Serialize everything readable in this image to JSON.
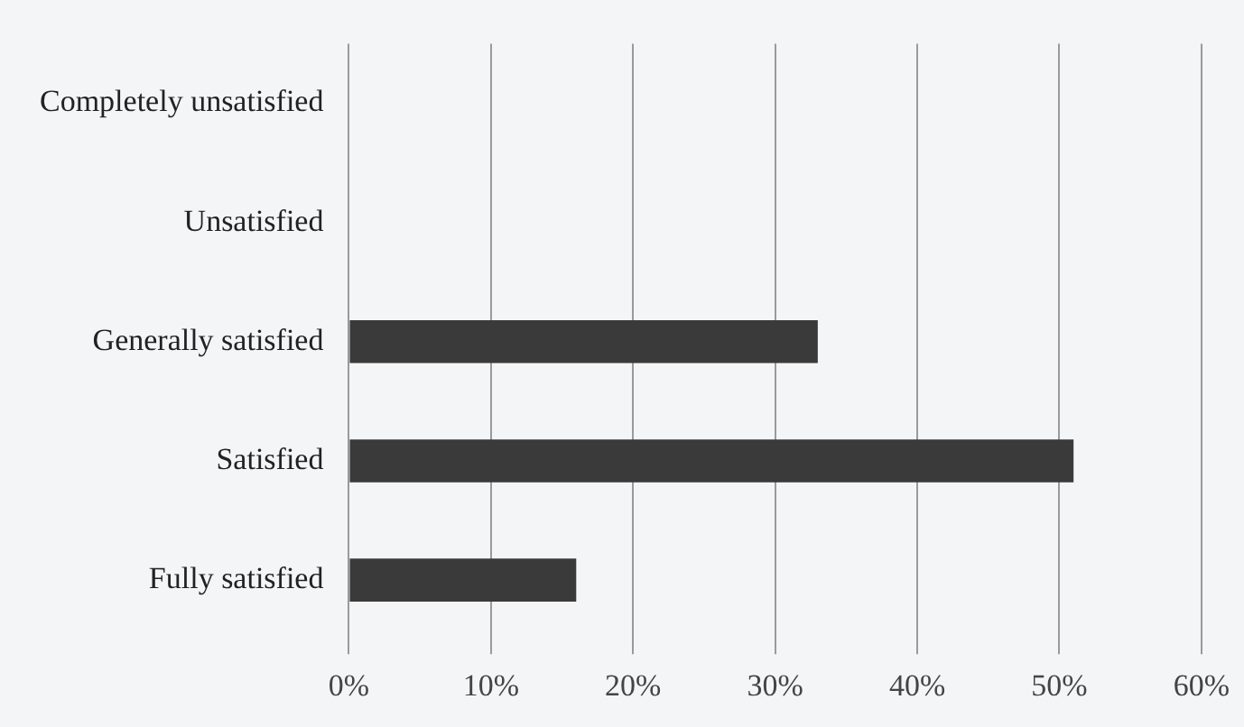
{
  "chart_data": {
    "type": "bar",
    "orientation": "horizontal",
    "categories": [
      "Completely unsatisfied",
      "Unsatisfied",
      "Generally satisfied",
      "Satisfied",
      "Fully satisfied"
    ],
    "values": [
      0,
      0,
      33,
      51,
      16
    ],
    "color": "#3a3a3a",
    "xlim": [
      0,
      60
    ],
    "xticks": [
      {
        "value": 0,
        "label": "0%"
      },
      {
        "value": 10,
        "label": "10%"
      },
      {
        "value": 20,
        "label": "20%"
      },
      {
        "value": 30,
        "label": "30%"
      },
      {
        "value": 40,
        "label": "40%"
      },
      {
        "value": 50,
        "label": "50%"
      },
      {
        "value": 60,
        "label": "60%"
      }
    ],
    "grid": "x",
    "legend": false
  }
}
